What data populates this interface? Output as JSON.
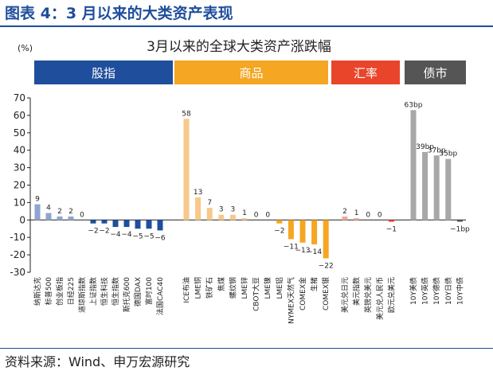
{
  "figure_title": "图表 4：3 月以来的大类资产表现",
  "source": "资料来源：Wind、申万宏源研究",
  "chart_data": {
    "type": "bar",
    "title": "3月以来的全球大类资产涨跌幅",
    "ylabel": "(%)",
    "ylim": [
      -30,
      70
    ],
    "yticks": [
      70,
      60,
      50,
      40,
      30,
      20,
      10,
      0,
      -10,
      -20,
      -30
    ],
    "grid": false,
    "groups": [
      {
        "name": "股指",
        "color": "#1f4e9c",
        "bar_color": "#8fa5cf",
        "neg_color": "#1f4e9c",
        "categories": [
          "纳斯达克",
          "标普500",
          "创业板指",
          "日经225",
          "道琼斯指数",
          "上证指数",
          "恒生科技",
          "恒生指数",
          "斯托克600",
          "德国DAX",
          "富时100",
          "法国CAC40"
        ],
        "values": [
          9,
          4,
          2,
          2,
          0,
          -2,
          -2,
          -4,
          -4,
          -5,
          -5,
          -6
        ],
        "labels": [
          "9",
          "4",
          "2",
          "2",
          "0",
          "−2",
          "−2",
          "−4",
          "−4",
          "−5",
          "−5",
          "−6"
        ]
      },
      {
        "name": "商品",
        "color": "#f5a623",
        "bar_color": "#f7c98a",
        "neg_color": "#f5a623",
        "categories": [
          "ICE布油",
          "LME铜",
          "铁矿石",
          "焦煤",
          "螺纹钢",
          "LME锌",
          "CBOT大豆",
          "LME镍",
          "LME铝",
          "NYMEX天然气",
          "COMEX金",
          "生猪",
          "COMEX银"
        ],
        "values": [
          58,
          13,
          7,
          3,
          3,
          1,
          0,
          0,
          -2,
          -11,
          -13,
          -14,
          -22
        ],
        "labels": [
          "58",
          "13",
          "7",
          "3",
          "3",
          "1",
          "0",
          "0",
          "−2",
          "−11",
          "−13",
          "−14",
          "−22"
        ]
      },
      {
        "name": "汇率",
        "color": "#e8452a",
        "bar_color": "#f0a89b",
        "neg_color": "#e8452a",
        "categories": [
          "美元兑日元",
          "美元指数",
          "英镑兑美元",
          "美元兑人民币",
          "欧元兑美元"
        ],
        "values": [
          2,
          1,
          0,
          0,
          -1
        ],
        "labels": [
          "2",
          "1",
          "0",
          "0",
          "−1"
        ]
      },
      {
        "name": "债市",
        "color": "#555555",
        "bar_color": "#a8a8a8",
        "neg_color": "#555555",
        "categories": [
          "10Y美债",
          "10Y英债",
          "10Y德债",
          "10Y日债",
          "10Y中债"
        ],
        "values": [
          63,
          39,
          37,
          35,
          -1
        ],
        "labels": [
          "63bp",
          "39bp",
          "37bp",
          "35bp",
          "−1bp"
        ]
      }
    ]
  }
}
